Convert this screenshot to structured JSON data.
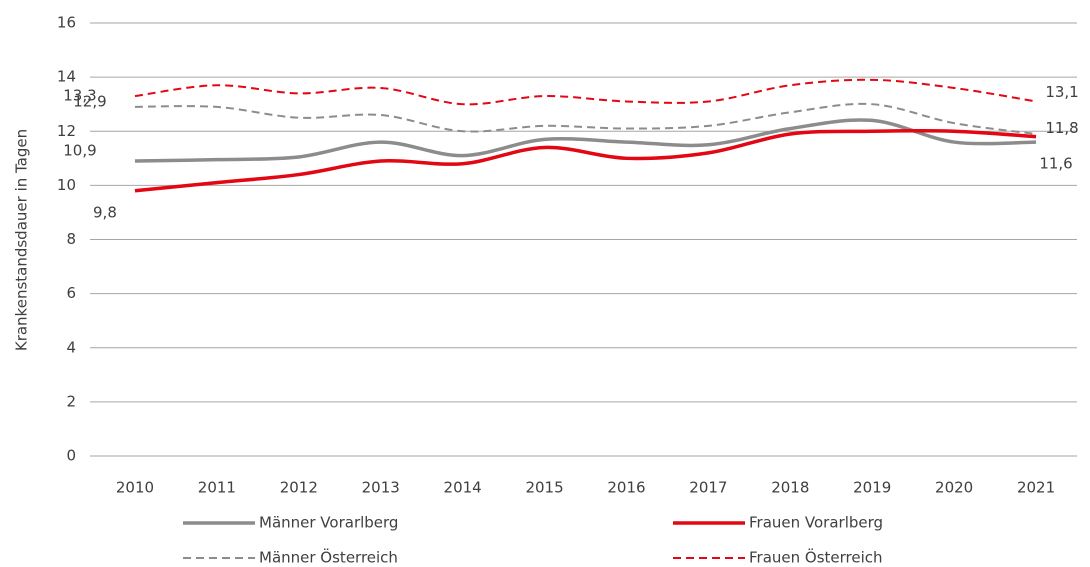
{
  "chart_data": {
    "type": "line",
    "y_label": "Krankenstandsdauer in Tagen",
    "categories": [
      "2010",
      "2011",
      "2012",
      "2013",
      "2014",
      "2015",
      "2016",
      "2017",
      "2018",
      "2019",
      "2020",
      "2021"
    ],
    "series": [
      {
        "name": "Männer Vorarlberg",
        "color": "#8c8c8c",
        "style": "solid",
        "values": [
          10.9,
          10.95,
          11.05,
          11.6,
          11.1,
          11.7,
          11.6,
          11.5,
          12.1,
          12.4,
          11.6,
          11.6
        ],
        "value_labels": [
          "10,9",
          null,
          null,
          null,
          null,
          null,
          null,
          null,
          null,
          null,
          null,
          "11,6"
        ]
      },
      {
        "name": "Frauen Vorarlberg",
        "color": "#e30613",
        "style": "solid",
        "values": [
          9.8,
          10.1,
          10.4,
          10.9,
          10.8,
          11.4,
          11.0,
          11.2,
          11.9,
          12.0,
          12.0,
          11.8
        ],
        "value_labels": [
          "9,8",
          null,
          null,
          null,
          null,
          null,
          null,
          null,
          null,
          null,
          null,
          "11,8"
        ]
      },
      {
        "name": "Männer Österreich",
        "color": "#8c8c8c",
        "style": "dashed",
        "values": [
          12.9,
          12.9,
          12.5,
          12.6,
          12.0,
          12.2,
          12.1,
          12.2,
          12.7,
          13.0,
          12.3,
          11.9
        ],
        "value_labels": [
          "12,9",
          null,
          null,
          null,
          null,
          null,
          null,
          null,
          null,
          null,
          null,
          null
        ]
      },
      {
        "name": "Frauen Österreich",
        "color": "#e30613",
        "style": "dashed",
        "values": [
          13.3,
          13.7,
          13.4,
          13.6,
          13.0,
          13.3,
          13.1,
          13.1,
          13.7,
          13.9,
          13.6,
          13.1
        ],
        "value_labels": [
          "13,3",
          null,
          null,
          null,
          null,
          null,
          null,
          null,
          null,
          null,
          null,
          "13,1"
        ]
      }
    ],
    "ylim": [
      0,
      16
    ],
    "yticks": [
      0,
      2,
      4,
      6,
      8,
      10,
      12,
      14,
      16
    ],
    "grid": true
  }
}
